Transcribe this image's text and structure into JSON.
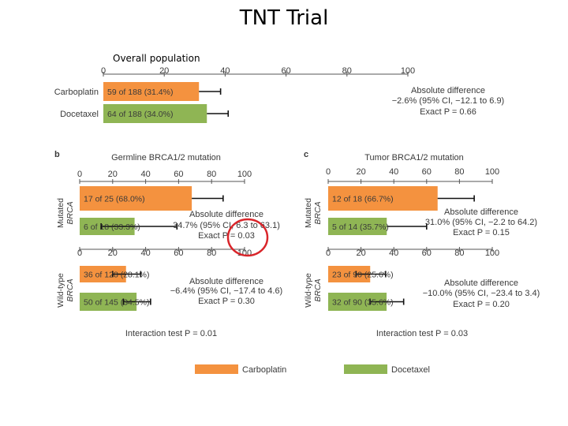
{
  "title": "TNT Trial",
  "overall_label": "Overall population",
  "panel_b_letter": "b",
  "panel_c_letter": "c",
  "colors": {
    "carboplatin": "#f4923f",
    "docetaxel": "#8fb554",
    "circle": "#d9252a"
  },
  "legend": {
    "carboplatin": "Carboplatin",
    "docetaxel": "Docetaxel"
  },
  "chart_data": [
    {
      "type": "bar",
      "title": "Overall population",
      "xlim": [
        0,
        100
      ],
      "xticks": [
        "0",
        "20",
        "40",
        "60",
        "80",
        "100"
      ],
      "rows": [
        {
          "label": "Carboplatin",
          "text": "59 of 188 (31.4%)",
          "value": 31.4,
          "ci_high": 38.5,
          "color": "carboplatin"
        },
        {
          "label": "Docetaxel",
          "text": "64 of 188 (34.0%)",
          "value": 34.0,
          "ci_high": 41.0,
          "color": "docetaxel"
        }
      ],
      "annotation": [
        "Absolute difference",
        "−2.6% (95% CI, −12.1 to 6.9)",
        "Exact P = 0.66"
      ]
    },
    {
      "type": "bar",
      "title": "Germline BRCA1/2 mutation",
      "group": "Mutated BRCA",
      "xlim": [
        0,
        100
      ],
      "xticks": [
        "0",
        "20",
        "40",
        "60",
        "80",
        "100"
      ],
      "rows": [
        {
          "text": "17 of 25 (68.0%)",
          "value": 68.0,
          "ci_low": 68.0,
          "ci_high": 87.0,
          "color": "carboplatin"
        },
        {
          "text": "6 of 18 (33.3%)",
          "value": 33.3,
          "ci_low": 13.0,
          "ci_high": 59.0,
          "color": "docetaxel"
        }
      ],
      "annotation": [
        "Absolute difference",
        "34.7% (95% CI, 6.3 to 63.1)",
        "Exact P = 0.03"
      ]
    },
    {
      "type": "bar",
      "group": "Wild-type BRCA",
      "xlim": [
        0,
        100
      ],
      "xticks": [
        "0",
        "20",
        "40",
        "60",
        "80",
        "100"
      ],
      "rows": [
        {
          "text": "36 of 128 (28.1%)",
          "value": 28.1,
          "ci_low": 20.0,
          "ci_high": 37.0,
          "color": "carboplatin"
        },
        {
          "text": "50 of 145 (34.5%)",
          "value": 34.5,
          "ci_low": 26.5,
          "ci_high": 43.0,
          "color": "docetaxel"
        }
      ],
      "annotation": [
        "Absolute difference",
        "−6.4% (95% CI, −17.4 to 4.6)",
        "Exact P = 0.30"
      ],
      "footer": "Interaction test P = 0.01"
    },
    {
      "type": "bar",
      "title": "Tumor BRCA1/2 mutation",
      "group": "Mutated BRCA",
      "xlim": [
        0,
        100
      ],
      "xticks": [
        "0",
        "20",
        "40",
        "60",
        "80",
        "100"
      ],
      "rows": [
        {
          "text": "12 of 18 (66.7%)",
          "value": 66.7,
          "ci_low": 66.7,
          "ci_high": 89.0,
          "color": "carboplatin"
        },
        {
          "text": "5 of 14 (35.7%)",
          "value": 35.7,
          "ci_low": 35.7,
          "ci_high": 60.0,
          "color": "docetaxel"
        }
      ],
      "annotation": [
        "Absolute difference",
        "31.0% (95% CI, −2.2 to 64.2)",
        "Exact P = 0.15"
      ]
    },
    {
      "type": "bar",
      "group": "Wild-type BRCA",
      "xlim": [
        0,
        100
      ],
      "xticks": [
        "0",
        "20",
        "40",
        "60",
        "80",
        "100"
      ],
      "rows": [
        {
          "text": "23 of 90 (25.6%)",
          "value": 25.6,
          "ci_low": 17.0,
          "ci_high": 35.0,
          "color": "carboplatin"
        },
        {
          "text": "32 of 90 (35.6%)",
          "value": 35.6,
          "ci_low": 25.5,
          "ci_high": 46.0,
          "color": "docetaxel"
        }
      ],
      "annotation": [
        "Absolute difference",
        "−10.0% (95% CI, −23.4 to 3.4)",
        "Exact P = 0.20"
      ],
      "footer": "Interaction test P = 0.03"
    }
  ],
  "row_labels": {
    "mutated": [
      "Mutated",
      "BRCA"
    ],
    "wild": [
      "Wild-type",
      "BRCA"
    ]
  }
}
